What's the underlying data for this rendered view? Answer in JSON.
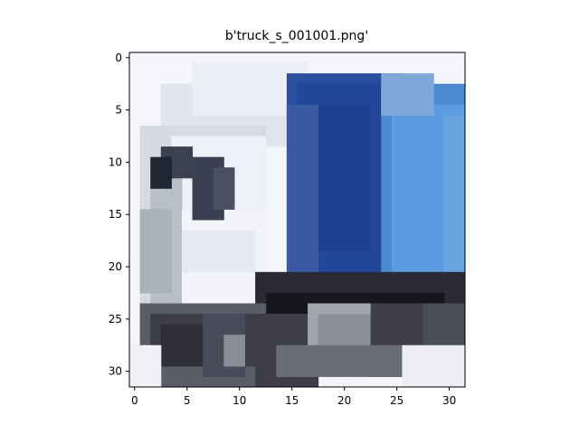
{
  "title": "b'truck_s_001001.png'",
  "image": {
    "description": "",
    "grid": [
      32,
      32
    ]
  },
  "axes": {
    "x_ticks": [
      "0",
      "5",
      "10",
      "15",
      "20",
      "25",
      "30"
    ],
    "y_ticks": [
      "0",
      "5",
      "10",
      "15",
      "20",
      "25",
      "30"
    ]
  }
}
